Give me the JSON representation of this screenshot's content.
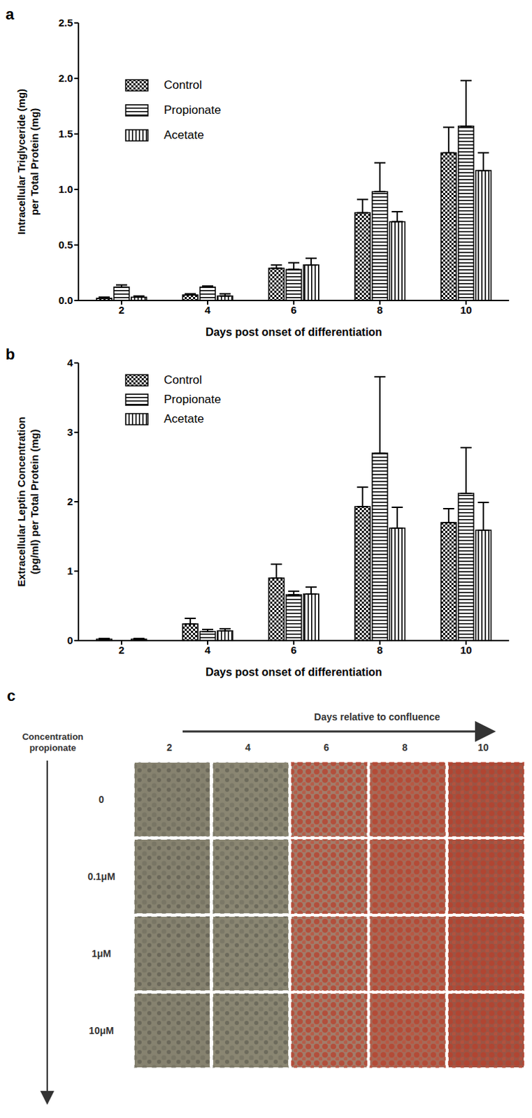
{
  "chart_data": [
    {
      "type": "bar",
      "panel_label": "a",
      "xlabel": "Days post onset of differentiation",
      "ylabel": [
        "Intracellular Triglyceride (mg)",
        "per Total Protein (mg)"
      ],
      "categories": [
        "2",
        "4",
        "6",
        "8",
        "10"
      ],
      "series": [
        {
          "name": "Control",
          "color": "#000000",
          "values": [
            0.02,
            0.05,
            0.29,
            0.79,
            1.33
          ],
          "errors": [
            0.01,
            0.01,
            0.03,
            0.12,
            0.23
          ]
        },
        {
          "name": "Propionate",
          "color": "#000000",
          "values": [
            0.12,
            0.12,
            0.28,
            0.98,
            1.57
          ],
          "errors": [
            0.02,
            0.01,
            0.06,
            0.26,
            0.41
          ]
        },
        {
          "name": "Acetate",
          "color": "#000000",
          "values": [
            0.03,
            0.04,
            0.32,
            0.71,
            1.17
          ],
          "errors": [
            0.01,
            0.02,
            0.06,
            0.09,
            0.16
          ]
        }
      ],
      "ylim": [
        0,
        2.5
      ],
      "yticks": [
        {
          "value": 0,
          "label": "0.0"
        },
        {
          "value": 0.5,
          "label": "0.5"
        },
        {
          "value": 1,
          "label": "1.0"
        },
        {
          "value": 1.5,
          "label": "1.5"
        },
        {
          "value": 2,
          "label": "2.0"
        },
        {
          "value": 2.5,
          "label": "2.5"
        }
      ],
      "legend": "upper left",
      "grid": false
    },
    {
      "type": "bar",
      "panel_label": "b",
      "xlabel": "Days post onset of differentiation",
      "ylabel": [
        "Extracellular Leptin Concentration",
        "(pg/ml) per Total Protein (mg)"
      ],
      "categories": [
        "2",
        "4",
        "6",
        "8",
        "10"
      ],
      "series": [
        {
          "name": "Control",
          "color": "#000000",
          "values": [
            0.02,
            0.24,
            0.9,
            1.93,
            1.7
          ],
          "errors": [
            0.01,
            0.08,
            0.2,
            0.28,
            0.2
          ]
        },
        {
          "name": "Propionate",
          "color": "#000000",
          "values": [
            0,
            0.13,
            0.66,
            2.7,
            2.12
          ],
          "errors": [
            null,
            0.03,
            0.05,
            1.1,
            0.66
          ]
        },
        {
          "name": "Acetate",
          "color": "#000000",
          "values": [
            0.02,
            0.14,
            0.67,
            1.62,
            1.59
          ],
          "errors": [
            0.01,
            0.03,
            0.1,
            0.3,
            0.4
          ]
        }
      ],
      "ylim": [
        0,
        4
      ],
      "yticks": [
        0,
        1,
        2,
        3,
        4
      ],
      "legend": "upper left",
      "grid": false
    }
  ],
  "image_grid": {
    "panel_label": "c",
    "title": "Days relative to confluence",
    "row_title": [
      "Concentration",
      "propionate"
    ],
    "columns": [
      "2",
      "4",
      "6",
      "8",
      "10"
    ],
    "rows": [
      "0",
      "0.1μM",
      "1μM",
      "10μM"
    ]
  }
}
